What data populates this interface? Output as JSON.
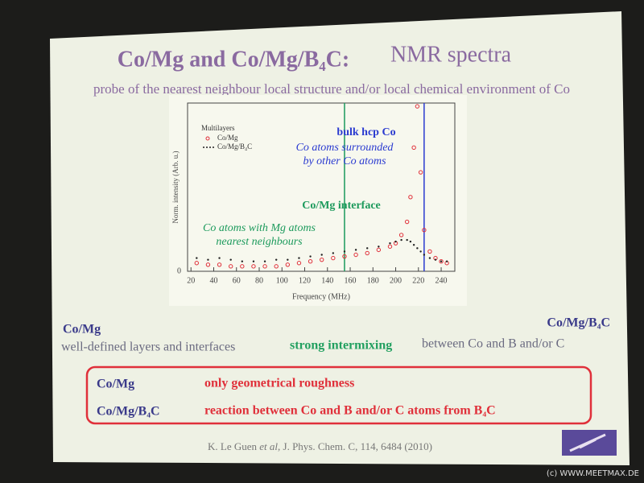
{
  "slide": {
    "title": {
      "bold": "Co/Mg and Co/Mg/B₄C:",
      "normal": "NMR spectra"
    },
    "subtitle": "probe of the nearest neighbour local structure and/or local chemical environment of Co",
    "left": {
      "heading": "Co/Mg",
      "text": "well-defined layers and interfaces"
    },
    "right": {
      "heading": "Co/Mg/B₄C",
      "highlight": "strong intermixing",
      "text": "between Co and B and/or C"
    },
    "box": {
      "rows": [
        [
          "Co/Mg",
          "only geometrical roughness"
        ],
        [
          "Co/Mg/B₄C",
          "reaction between Co and B and/or C atoms from B₄C"
        ]
      ]
    },
    "citation": [
      "K. Le Guen ",
      "et al",
      ", J. Phys. Chem. C, 114, 6484 (2010)"
    ],
    "watermark": "(c) WWW.MEETMAX.DE"
  },
  "chart_data": {
    "type": "scatter",
    "x_label": "Frequency (MHz)",
    "y_label": "Norm. intensity (Arb. u.)",
    "legend_title": "Multilayers",
    "x": [
      25,
      35,
      45,
      55,
      65,
      75,
      85,
      95,
      105,
      115,
      125,
      135,
      145,
      155,
      165,
      175,
      185,
      195,
      200,
      205,
      210,
      213,
      216,
      219,
      222,
      225,
      230,
      235,
      240,
      245
    ],
    "series": [
      {
        "name": "Co/Mg",
        "color": "#e0303a",
        "values": [
          5,
          4,
          4,
          3,
          3,
          3,
          3,
          3,
          4,
          5,
          6,
          7,
          8,
          9,
          10,
          11,
          13,
          15,
          17,
          22,
          30,
          45,
          75,
          100,
          60,
          25,
          12,
          8,
          6,
          5
        ]
      },
      {
        "name": "Co/Mg/B₄C",
        "color": "#222222",
        "values": [
          8,
          7,
          8,
          7,
          6,
          6,
          6,
          7,
          7,
          8,
          9,
          10,
          11,
          12,
          13,
          14,
          15,
          17,
          18,
          19,
          19,
          18,
          16,
          14,
          12,
          10,
          8,
          7,
          6,
          6
        ]
      }
    ],
    "xlim": [
      17,
      252
    ],
    "xticks": [
      20,
      40,
      60,
      80,
      100,
      120,
      140,
      160,
      180,
      200,
      220,
      240
    ],
    "ylim": [
      0,
      102
    ],
    "yticks": [
      0
    ],
    "vlines": [
      {
        "x": 225,
        "color": "#2a3ad0"
      },
      {
        "x": 155,
        "color": "#1c9a5c"
      }
    ],
    "annotations": [
      {
        "lines": [
          "bulk hcp Co"
        ],
        "color": "#2a3ad0",
        "style": "bold"
      },
      {
        "lines": [
          "Co atoms surrounded",
          "by other Co atoms"
        ],
        "color": "#2a3ad0",
        "style": "italic"
      },
      {
        "lines": [
          "Co/Mg interface"
        ],
        "color": "#1c9a5c",
        "style": "bold"
      },
      {
        "lines": [
          "Co atoms with Mg atoms",
          "nearest neighbours"
        ],
        "color": "#1c9a5c",
        "style": "italic"
      }
    ]
  }
}
